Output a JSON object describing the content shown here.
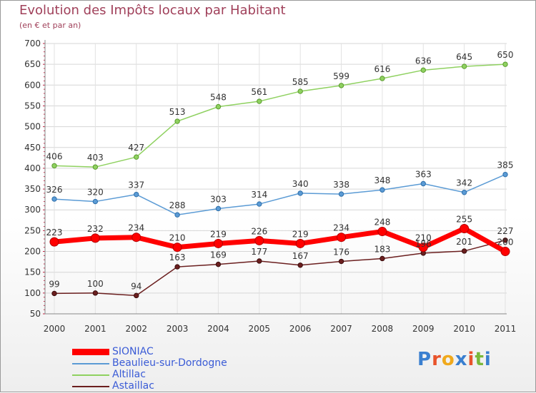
{
  "title": "Evolution des Impôts locaux par Habitant",
  "subtitle": "(en € et par an)",
  "logo": {
    "letters": [
      "P",
      "r",
      "o",
      "x",
      "i",
      "t",
      "i"
    ],
    "colors": [
      "#3a7fd0",
      "#e8532b",
      "#f0a91c",
      "#3a7fd0",
      "#e8532b",
      "#7ab83b",
      "#3a7fd0"
    ]
  },
  "chart_data": {
    "type": "line",
    "x": [
      "2000",
      "2001",
      "2002",
      "2003",
      "2004",
      "2005",
      "2006",
      "2007",
      "2008",
      "2009",
      "2010",
      "2011"
    ],
    "ylim": [
      50,
      700
    ],
    "yticks": [
      50,
      100,
      150,
      200,
      250,
      300,
      350,
      400,
      450,
      500,
      550,
      600,
      650,
      700
    ],
    "grid": true,
    "legend_position": "bottom-left",
    "series": [
      {
        "name": "SIONIAC",
        "color": "#ff0000",
        "values": [
          223,
          232,
          234,
          210,
          219,
          226,
          219,
          234,
          248,
          210,
          255,
          200
        ],
        "labels": [
          "223",
          "232",
          "234",
          "210",
          "219",
          "226",
          "219",
          "234",
          "248",
          "210",
          "255",
          "200"
        ]
      },
      {
        "name": "Beaulieu-sur-Dordogne",
        "color": "#5b9bd5",
        "values": [
          326,
          320,
          337,
          288,
          303,
          314,
          340,
          338,
          348,
          363,
          342,
          385
        ],
        "labels": [
          "326",
          "320",
          "337",
          "288",
          "303",
          "314",
          "340",
          "338",
          "348",
          "363",
          "342",
          "385"
        ]
      },
      {
        "name": "Altillac",
        "color": "#8fd160",
        "values": [
          406,
          403,
          427,
          513,
          548,
          561,
          585,
          599,
          616,
          636,
          645,
          650
        ],
        "labels": [
          "406",
          "403",
          "427",
          "513",
          "548",
          "561",
          "585",
          "599",
          "616",
          "636",
          "645",
          "650"
        ]
      },
      {
        "name": "Astaillac",
        "color": "#6b1f1f",
        "values": [
          99,
          100,
          94,
          163,
          169,
          177,
          167,
          176,
          183,
          196,
          201,
          227
        ],
        "labels": [
          "99",
          "100",
          "94",
          "163",
          "169",
          "177",
          "167",
          "176",
          "183",
          "196",
          "201",
          "227"
        ]
      }
    ]
  }
}
